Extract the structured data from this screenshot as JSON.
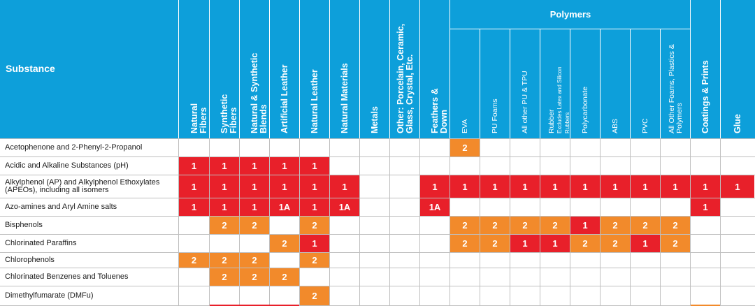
{
  "header": {
    "substance_label": "Substance",
    "polymers_group_label": "Polymers",
    "columns": [
      {
        "label": "Natural Fibers"
      },
      {
        "label": "Synthetic Fibers"
      },
      {
        "label": "Natural & Synthetic Blends"
      },
      {
        "label": "Artificial Leather"
      },
      {
        "label": "Natural Leather"
      },
      {
        "label": "Natural Materials"
      },
      {
        "label": "Metals"
      },
      {
        "label": "Other: Porcelain, Ceramic, Glass, Crystal, Etc."
      },
      {
        "label": "Feathers & Down"
      },
      {
        "label": "EVA"
      },
      {
        "label": "PU Foams"
      },
      {
        "label": "All other PU & TPU"
      },
      {
        "label": "Rubber",
        "sublabel": "Excludes Latex and Silicon Rubbers"
      },
      {
        "label": "Polycarbonate"
      },
      {
        "label": "ABS"
      },
      {
        "label": "PVC"
      },
      {
        "label": "All Other Foams, Plastics & Polymers"
      },
      {
        "label": "Coatings & Prints"
      },
      {
        "label": "Glue"
      }
    ]
  },
  "colors": {
    "header_blue": "#0d9fda",
    "red": "#e8202a",
    "orange": "#f28a2b",
    "grid": "#bfbfbf"
  },
  "rows": [
    {
      "substance": "Acetophenone and 2-Phenyl-2-Propanol",
      "cells": [
        "",
        "",
        "",
        "",
        "",
        "",
        "",
        "",
        "",
        "2",
        "",
        "",
        "",
        "",
        "",
        "",
        "",
        "",
        ""
      ],
      "levels": [
        "",
        "",
        "",
        "",
        "",
        "",
        "",
        "",
        "",
        "o",
        "",
        "",
        "",
        "",
        "",
        "",
        "",
        "",
        ""
      ]
    },
    {
      "substance": "Acidic and Alkaline Substances (pH)",
      "cells": [
        "1",
        "1",
        "1",
        "1",
        "1",
        "",
        "",
        "",
        "",
        "",
        "",
        "",
        "",
        "",
        "",
        "",
        "",
        "",
        ""
      ],
      "levels": [
        "r",
        "r",
        "r",
        "r",
        "r",
        "",
        "",
        "",
        "",
        "",
        "",
        "",
        "",
        "",
        "",
        "",
        "",
        "",
        ""
      ]
    },
    {
      "substance": "Alkylphenol (AP) and Alkylphenol Ethoxylates (APEOs), including all isomers",
      "cells": [
        "1",
        "1",
        "1",
        "1",
        "1",
        "1",
        "",
        "",
        "1",
        "1",
        "1",
        "1",
        "1",
        "1",
        "1",
        "1",
        "1",
        "1",
        "1"
      ],
      "levels": [
        "r",
        "r",
        "r",
        "r",
        "r",
        "r",
        "",
        "",
        "r",
        "r",
        "r",
        "r",
        "r",
        "r",
        "r",
        "r",
        "r",
        "r",
        "r"
      ]
    },
    {
      "substance": "Azo-amines and Aryl Amine salts",
      "cells": [
        "1",
        "1",
        "1",
        "1A",
        "1",
        "1A",
        "",
        "",
        "1A",
        "",
        "",
        "",
        "",
        "",
        "",
        "",
        "",
        "1",
        ""
      ],
      "levels": [
        "r",
        "r",
        "r",
        "r",
        "r",
        "r",
        "",
        "",
        "r",
        "",
        "",
        "",
        "",
        "",
        "",
        "",
        "",
        "r",
        ""
      ]
    },
    {
      "substance": "Bisphenols",
      "cells": [
        "",
        "2",
        "2",
        "",
        "2",
        "",
        "",
        "",
        "",
        "2",
        "2",
        "2",
        "2",
        "1",
        "2",
        "2",
        "2",
        "",
        ""
      ],
      "levels": [
        "",
        "o",
        "o",
        "",
        "o",
        "",
        "",
        "",
        "",
        "o",
        "o",
        "o",
        "o",
        "r",
        "o",
        "o",
        "o",
        "",
        ""
      ]
    },
    {
      "substance": "Chlorinated Paraffins",
      "cells": [
        "",
        "",
        "",
        "2",
        "1",
        "",
        "",
        "",
        "",
        "2",
        "2",
        "1",
        "1",
        "2",
        "2",
        "1",
        "2",
        "",
        ""
      ],
      "levels": [
        "",
        "",
        "",
        "o",
        "r",
        "",
        "",
        "",
        "",
        "o",
        "o",
        "r",
        "r",
        "o",
        "o",
        "r",
        "o",
        "",
        ""
      ]
    },
    {
      "substance": "Chlorophenols",
      "cells": [
        "2",
        "2",
        "2",
        "",
        "2",
        "",
        "",
        "",
        "",
        "",
        "",
        "",
        "",
        "",
        "",
        "",
        "",
        "",
        ""
      ],
      "levels": [
        "o",
        "o",
        "o",
        "",
        "o",
        "",
        "",
        "",
        "",
        "",
        "",
        "",
        "",
        "",
        "",
        "",
        "",
        "",
        ""
      ]
    },
    {
      "substance": "Chlorinated Benzenes and Toluenes",
      "cells": [
        "",
        "2",
        "2",
        "2",
        "",
        "",
        "",
        "",
        "",
        "",
        "",
        "",
        "",
        "",
        "",
        "",
        "",
        "",
        ""
      ],
      "levels": [
        "",
        "o",
        "o",
        "o",
        "",
        "",
        "",
        "",
        "",
        "",
        "",
        "",
        "",
        "",
        "",
        "",
        "",
        "",
        ""
      ]
    },
    {
      "substance": "Dimethylfumarate (DMFu)",
      "cells": [
        "",
        "",
        "",
        "",
        "2",
        "",
        "",
        "",
        "",
        "",
        "",
        "",
        "",
        "",
        "",
        "",
        "",
        "",
        ""
      ],
      "levels": [
        "",
        "",
        "",
        "",
        "o",
        "",
        "",
        "",
        "",
        "",
        "",
        "",
        "",
        "",
        "",
        "",
        "",
        "",
        ""
      ]
    }
  ]
}
